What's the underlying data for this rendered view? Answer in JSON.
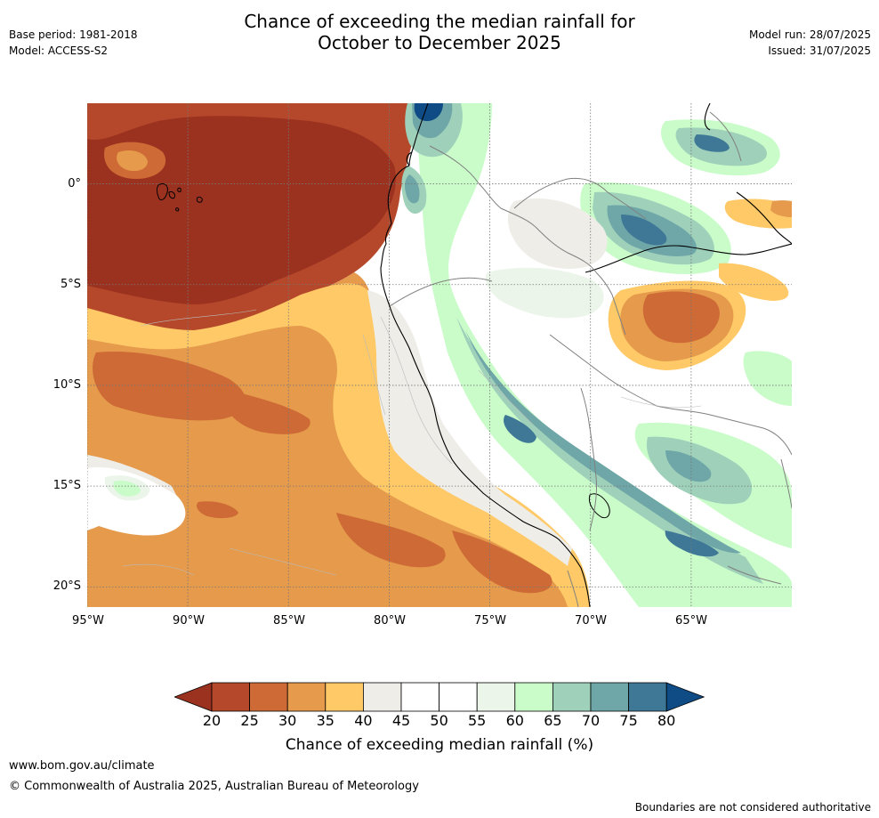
{
  "header": {
    "base_period": "Base period: 1981-2018",
    "model": "Model: ACCESS-S2",
    "model_run": "Model run: 28/07/2025",
    "issued": "Issued: 31/07/2025",
    "title_line1": "Chance of exceeding the median rainfall for",
    "title_line2": "October to December 2025"
  },
  "map": {
    "lat_labels": [
      "0°",
      "5°S",
      "10°S",
      "15°S",
      "20°S"
    ],
    "lon_labels": [
      "95°W",
      "90°W",
      "85°W",
      "80°W",
      "75°W",
      "70°W",
      "65°W"
    ],
    "extent": {
      "lon_min": -95,
      "lon_max": -60,
      "lat_min": -21,
      "lat_max": 4
    },
    "gridlines": true,
    "gridline_lats": [
      0,
      -5,
      -10,
      -15,
      -20
    ],
    "gridline_lons": [
      -95,
      -90,
      -85,
      -80,
      -75,
      -70,
      -65
    ]
  },
  "legend": {
    "ticks": [
      "20",
      "25",
      "30",
      "35",
      "40",
      "45",
      "50",
      "55",
      "60",
      "65",
      "70",
      "75",
      "80"
    ],
    "colors": [
      "#9b3220",
      "#b5482a",
      "#cd6a35",
      "#e59a4c",
      "#fec966",
      "#efede8",
      "#ffffff",
      "#ffffff",
      "#ebf5ea",
      "#c9fcc9",
      "#9ed0ba",
      "#6fa6a8",
      "#3f7896",
      "#0f4b85"
    ],
    "label": "Chance of exceeding median rainfall (%)"
  },
  "footer": {
    "url": "www.bom.gov.au/climate",
    "copyright": "© Commonwealth of Australia 2025, Australian Bureau of Meteorology",
    "disclaimer": "Boundaries are not considered authoritative"
  }
}
